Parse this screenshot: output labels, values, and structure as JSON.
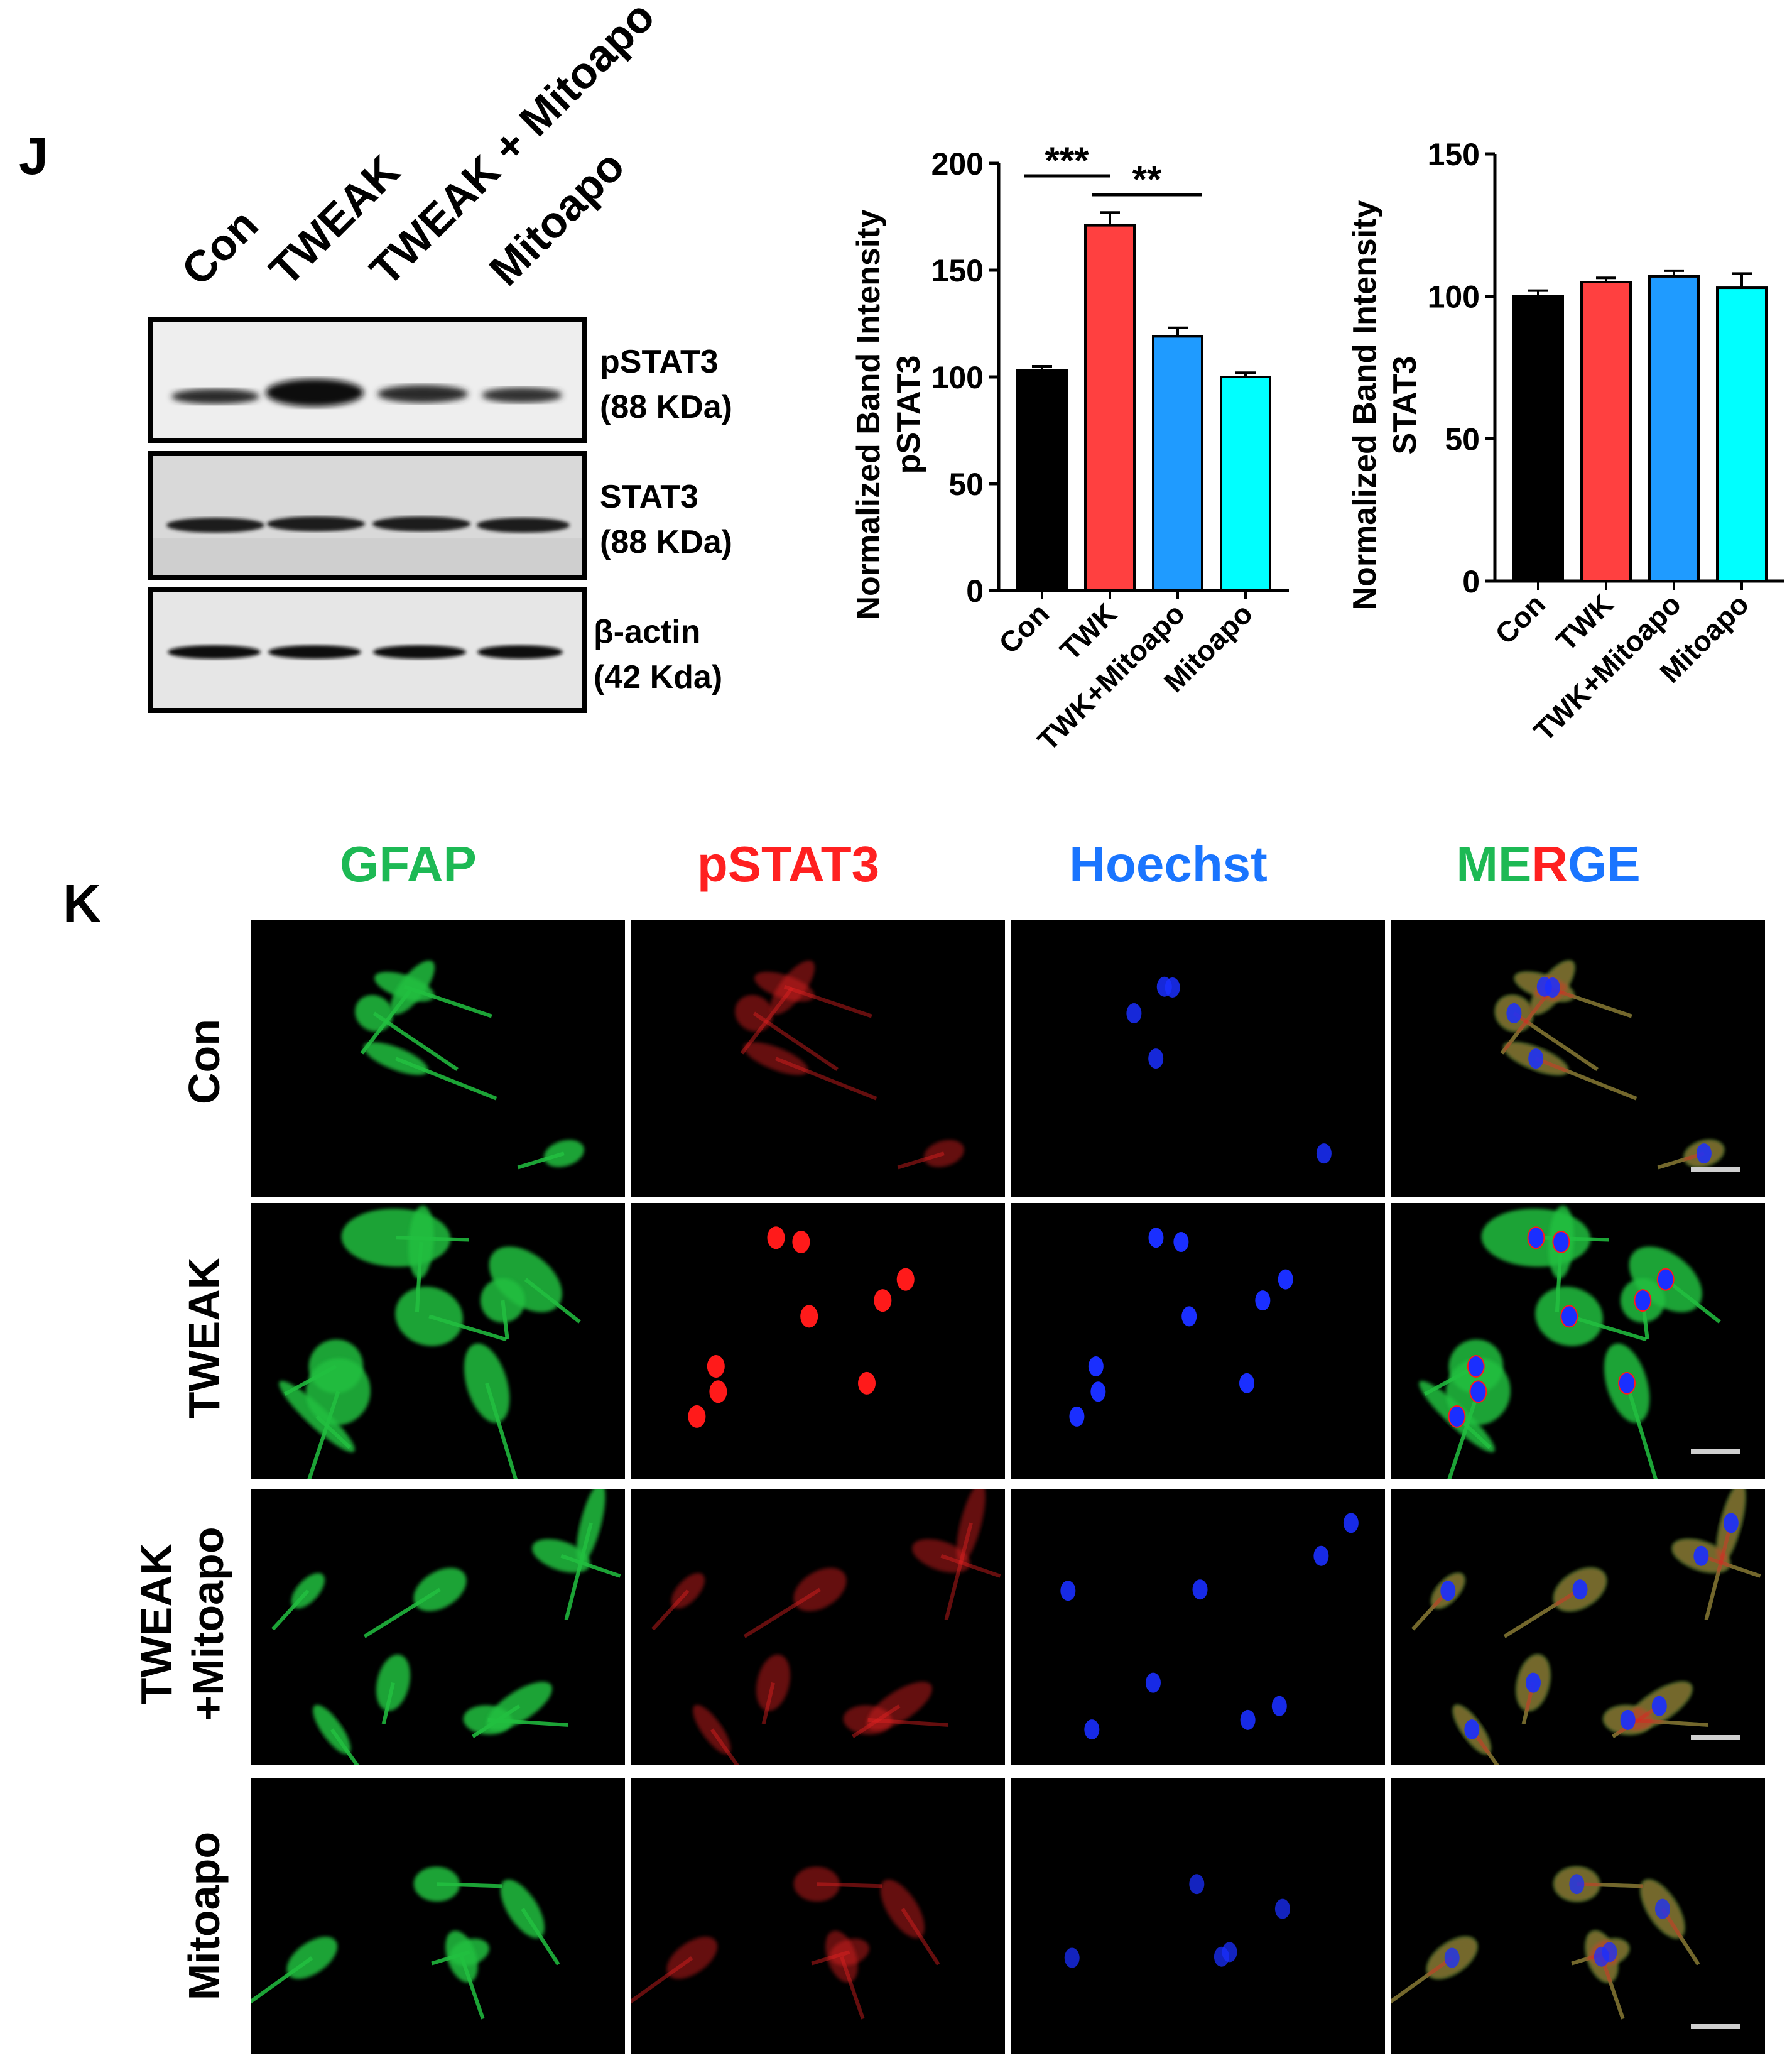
{
  "panel_j": {
    "letter": "J",
    "lanes": [
      "Con",
      "TWEAK",
      "TWEAK + Mitoapo",
      "Mitoapo"
    ],
    "blots": [
      {
        "name": "pSTAT3",
        "size": "(88 KDa)"
      },
      {
        "name": "STAT3",
        "size": "(88 KDa)"
      },
      {
        "name": "β-actin",
        "size": "(42 Kda)"
      }
    ]
  },
  "chart_data": [
    {
      "type": "bar",
      "ylabel_line1": "Normalized Band Intensity",
      "ylabel_line2": "pSTAT3",
      "categories": [
        "Con",
        "TWK",
        "TWK+Mitoapo",
        "Mitoapo"
      ],
      "values": [
        103,
        171,
        119,
        100
      ],
      "errors": [
        2,
        6,
        4,
        2
      ],
      "colors": [
        "#000000",
        "#ff4040",
        "#1f9bff",
        "#00ffff"
      ],
      "ylim": [
        0,
        200
      ],
      "yticks": [
        "0",
        "50",
        "100",
        "150",
        "200"
      ],
      "significance": [
        {
          "from": 0,
          "to": 1,
          "label": "***"
        },
        {
          "from": 1,
          "to": 2,
          "label": "**"
        }
      ]
    },
    {
      "type": "bar",
      "ylabel_line1": "Normalized Band Intensity",
      "ylabel_line2": "STAT3",
      "categories": [
        "Con",
        "TWK",
        "TWK+Mitoapo",
        "Mitoapo"
      ],
      "values": [
        100,
        105,
        107,
        103
      ],
      "errors": [
        2,
        1.5,
        2,
        5
      ],
      "colors": [
        "#000000",
        "#ff4040",
        "#1f9bff",
        "#00ffff"
      ],
      "ylim": [
        0,
        150
      ],
      "yticks": [
        "0",
        "50",
        "100",
        "150"
      ],
      "significance": []
    }
  ],
  "panel_k": {
    "letter": "K",
    "channels": [
      {
        "label": "GFAP",
        "color": "#1db954"
      },
      {
        "label": "pSTAT3",
        "color": "#ff2020"
      },
      {
        "label": "Hoechst",
        "color": "#1a75ff"
      }
    ],
    "merge": {
      "part1": "ME",
      "part2": "R",
      "part3": "GE",
      "color1": "#1db954",
      "color2": "#ff2020",
      "color3": "#1a75ff"
    },
    "rows": [
      {
        "line1": "Con",
        "line2": ""
      },
      {
        "line1": "TWEAK",
        "line2": ""
      },
      {
        "line1": "TWEAK",
        "line2": "+Mitoapo"
      },
      {
        "line1": "Mitoapo",
        "line2": ""
      }
    ]
  }
}
